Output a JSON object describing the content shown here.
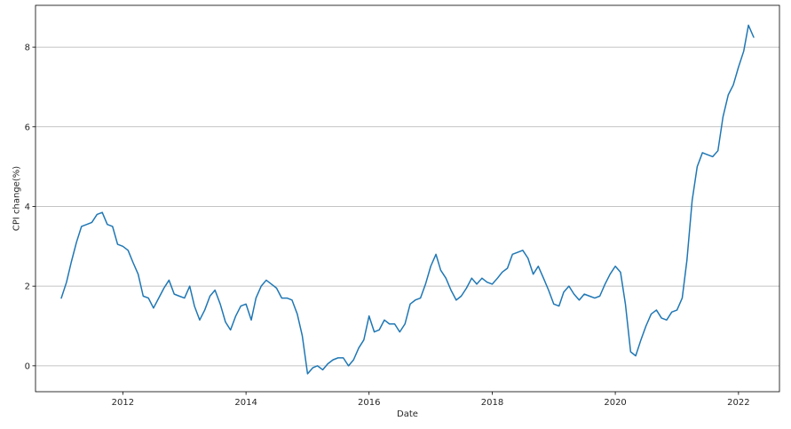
{
  "chart_data": {
    "type": "line",
    "title": "",
    "xlabel": "Date",
    "ylabel": "CPI change(%)",
    "xlim": [
      "2010-08-01",
      "2022-09-01"
    ],
    "ylim": [
      -0.65,
      9.05
    ],
    "grid": "horizontal",
    "x_ticks": [
      "2012",
      "2014",
      "2016",
      "2018",
      "2020",
      "2022"
    ],
    "y_ticks": [
      "0",
      "2",
      "4",
      "6",
      "8"
    ],
    "colors": {
      "line": "#1f77b4",
      "grid": "#b0b0b0",
      "axes": "#000000"
    },
    "series": [
      {
        "x": [
          "2011-01",
          "2011-02",
          "2011-03",
          "2011-04",
          "2011-05",
          "2011-06",
          "2011-07",
          "2011-08",
          "2011-09",
          "2011-10",
          "2011-11",
          "2011-12",
          "2012-01",
          "2012-02",
          "2012-03",
          "2012-04",
          "2012-05",
          "2012-06",
          "2012-07",
          "2012-08",
          "2012-09",
          "2012-10",
          "2012-11",
          "2012-12",
          "2013-01",
          "2013-02",
          "2013-03",
          "2013-04",
          "2013-05",
          "2013-06",
          "2013-07",
          "2013-08",
          "2013-09",
          "2013-10",
          "2013-11",
          "2013-12",
          "2014-01",
          "2014-02",
          "2014-03",
          "2014-04",
          "2014-05",
          "2014-06",
          "2014-07",
          "2014-08",
          "2014-09",
          "2014-10",
          "2014-11",
          "2014-12",
          "2015-01",
          "2015-02",
          "2015-03",
          "2015-04",
          "2015-05",
          "2015-06",
          "2015-07",
          "2015-08",
          "2015-09",
          "2015-10",
          "2015-11",
          "2015-12",
          "2016-01",
          "2016-02",
          "2016-03",
          "2016-04",
          "2016-05",
          "2016-06",
          "2016-07",
          "2016-08",
          "2016-09",
          "2016-10",
          "2016-11",
          "2016-12",
          "2017-01",
          "2017-02",
          "2017-03",
          "2017-04",
          "2017-05",
          "2017-06",
          "2017-07",
          "2017-08",
          "2017-09",
          "2017-10",
          "2017-11",
          "2017-12",
          "2018-01",
          "2018-02",
          "2018-03",
          "2018-04",
          "2018-05",
          "2018-06",
          "2018-07",
          "2018-08",
          "2018-09",
          "2018-10",
          "2018-11",
          "2018-12",
          "2019-01",
          "2019-02",
          "2019-03",
          "2019-04",
          "2019-05",
          "2019-06",
          "2019-07",
          "2019-08",
          "2019-09",
          "2019-10",
          "2019-11",
          "2019-12",
          "2020-01",
          "2020-02",
          "2020-03",
          "2020-04",
          "2020-05",
          "2020-06",
          "2020-07",
          "2020-08",
          "2020-09",
          "2020-10",
          "2020-11",
          "2020-12",
          "2021-01",
          "2021-02",
          "2021-03",
          "2021-04",
          "2021-05",
          "2021-06",
          "2021-07",
          "2021-08",
          "2021-09",
          "2021-10",
          "2021-11",
          "2021-12",
          "2022-01",
          "2022-02",
          "2022-03",
          "2022-04"
        ],
        "values": [
          1.7,
          2.1,
          2.6,
          3.1,
          3.5,
          3.55,
          3.6,
          3.8,
          3.85,
          3.55,
          3.5,
          3.05,
          3.0,
          2.9,
          2.6,
          2.3,
          1.75,
          1.7,
          1.45,
          1.7,
          1.95,
          2.15,
          1.8,
          1.75,
          1.7,
          2.0,
          1.5,
          1.15,
          1.4,
          1.75,
          1.9,
          1.55,
          1.1,
          0.9,
          1.25,
          1.5,
          1.55,
          1.15,
          1.7,
          2.0,
          2.15,
          2.05,
          1.95,
          1.7,
          1.7,
          1.65,
          1.3,
          0.75,
          -0.2,
          -0.05,
          0.0,
          -0.1,
          0.05,
          0.15,
          0.2,
          0.2,
          0.0,
          0.15,
          0.45,
          0.65,
          1.25,
          0.85,
          0.9,
          1.15,
          1.05,
          1.05,
          0.85,
          1.05,
          1.55,
          1.65,
          1.7,
          2.05,
          2.5,
          2.8,
          2.4,
          2.2,
          1.9,
          1.65,
          1.75,
          1.95,
          2.2,
          2.05,
          2.2,
          2.1,
          2.05,
          2.2,
          2.35,
          2.45,
          2.8,
          2.85,
          2.9,
          2.7,
          2.3,
          2.5,
          2.2,
          1.9,
          1.55,
          1.5,
          1.85,
          2.0,
          1.8,
          1.65,
          1.8,
          1.75,
          1.7,
          1.75,
          2.05,
          2.3,
          2.5,
          2.35,
          1.55,
          0.35,
          0.25,
          0.65,
          1.0,
          1.3,
          1.4,
          1.2,
          1.15,
          1.35,
          1.4,
          1.7,
          2.65,
          4.15,
          5.0,
          5.35,
          5.3,
          5.25,
          5.4,
          6.25,
          6.8,
          7.05,
          7.5,
          7.9,
          8.55,
          8.25
        ]
      }
    ]
  }
}
